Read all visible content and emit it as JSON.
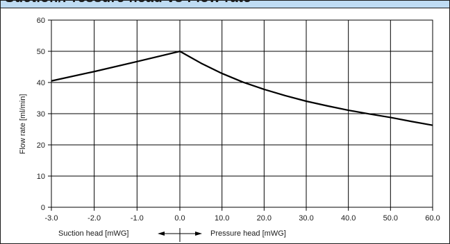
{
  "header": {
    "title": "Suction/Pressure head vs Flow rate"
  },
  "chart_data": {
    "type": "line",
    "title": "Suction/Pressure head vs Flow rate",
    "ylabel": "Flow rate [ml/min]",
    "xlabel_left": "Suction head [mWG]",
    "xlabel_right": "Pressure head [mWG]",
    "ylim": [
      0,
      60
    ],
    "y_ticks": [
      0,
      10,
      20,
      30,
      40,
      50,
      60
    ],
    "grid": true,
    "suction": {
      "x_ticks": [
        "-3.0",
        "-2.0",
        "-1.0",
        "0.0"
      ],
      "x_range": [
        -3.0,
        0.0
      ],
      "x": [
        -3.0,
        -2.0,
        -1.0,
        0.0
      ],
      "y": [
        40.5,
        43.5,
        46.7,
        50.0
      ]
    },
    "pressure": {
      "x_ticks": [
        "0.0",
        "10.0",
        "20.0",
        "30.0",
        "40.0",
        "50.0",
        "60.0"
      ],
      "x_range": [
        0.0,
        60.0
      ],
      "x": [
        0,
        5,
        10,
        15,
        20,
        25,
        30,
        35,
        40,
        45,
        50,
        55,
        60
      ],
      "y": [
        50.0,
        46.2,
        42.9,
        40.1,
        37.8,
        35.8,
        34.0,
        32.5,
        31.1,
        29.9,
        28.8,
        27.5,
        26.3
      ]
    },
    "colors": {
      "line": "#000000",
      "grid": "#000000",
      "header": "#bfdcf3"
    }
  }
}
